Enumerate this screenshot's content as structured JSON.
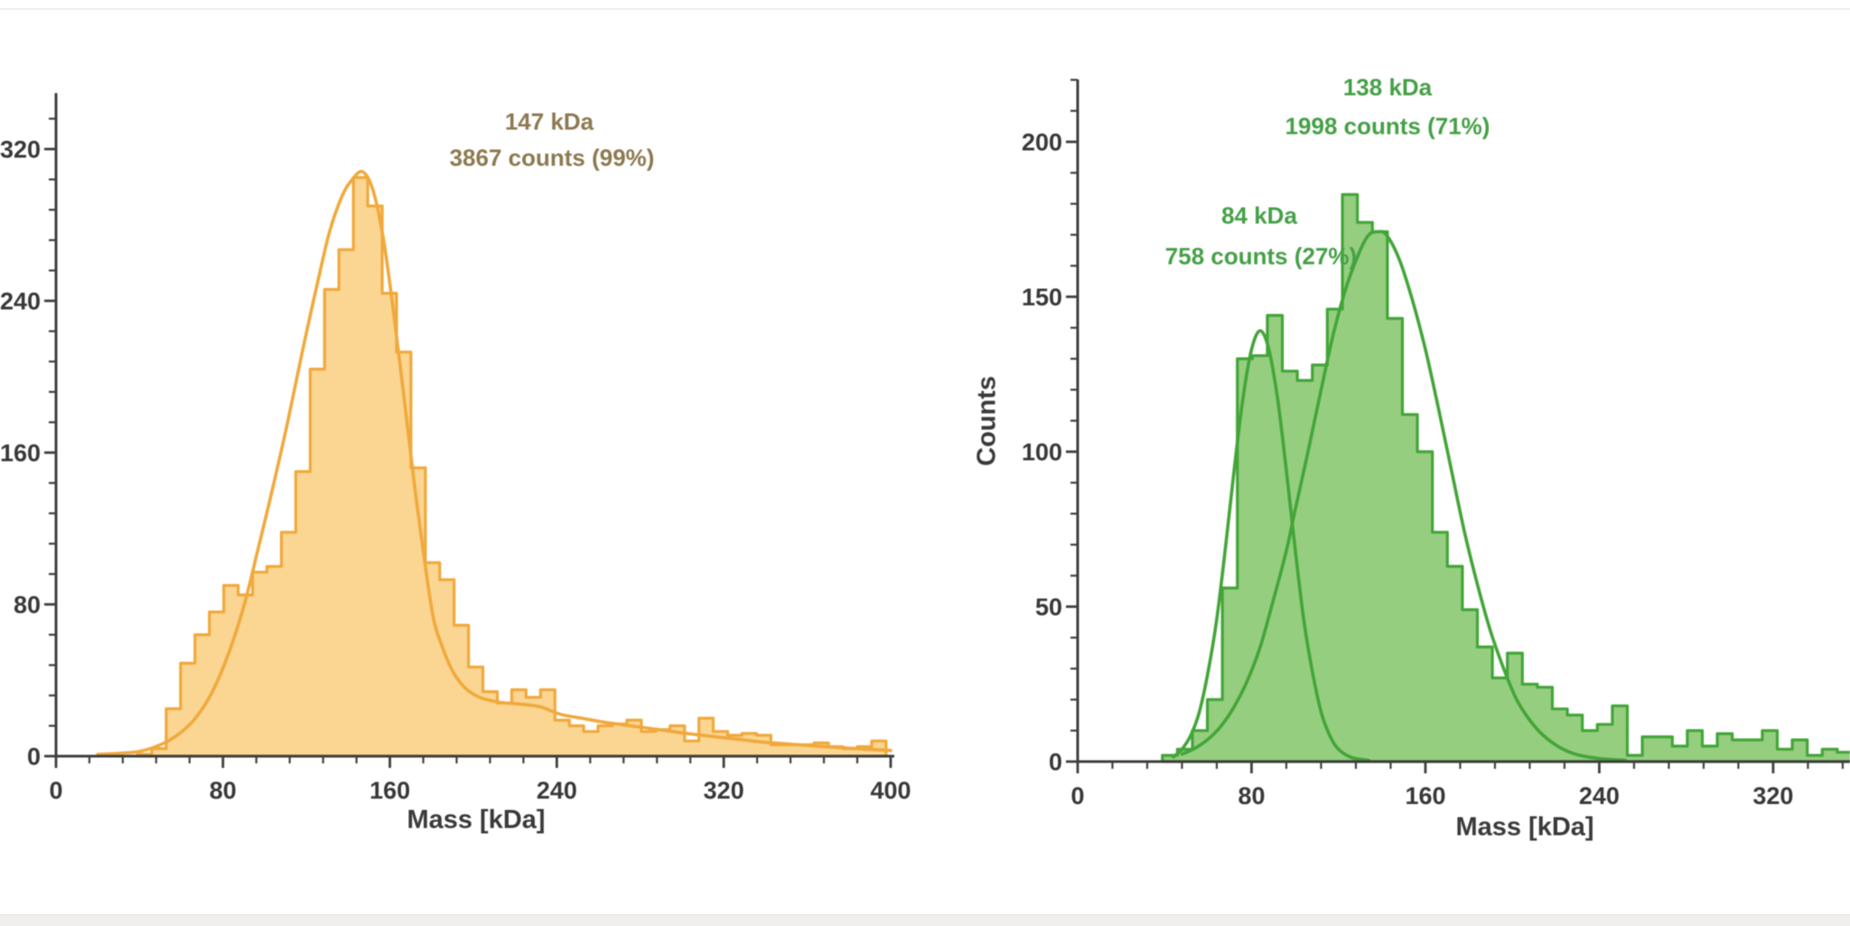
{
  "page": {
    "background": "#ffffff",
    "axis_color": "#3f3f3f",
    "tick_label_color": "#383838",
    "top_border_color": "#efefef",
    "bottom_bar_color": "#f0efee"
  },
  "charts": [
    {
      "id": "left",
      "series_name": "orange-mass-histogram",
      "colors": {
        "stroke": "#f0a93c",
        "fill": "#fbd592",
        "annotation": "#8d7950"
      },
      "annotations": [
        {
          "lines": [
            "147 kDa",
            "3867 counts (99%)"
          ]
        }
      ],
      "chart_data": {
        "type": "bar",
        "subtype": "histogram-with-gaussian-fit",
        "title": "",
        "xlabel": "Mass [kDa]",
        "ylabel": "",
        "xlim": [
          0,
          400
        ],
        "ylim": [
          0,
          350
        ],
        "x_major_ticks": [
          0,
          80,
          160,
          240,
          320,
          400
        ],
        "y_major_ticks": [
          0,
          80,
          160,
          240,
          320
        ],
        "x_minor_step": 16,
        "y_minor_step": 16,
        "grid": false,
        "legend": false,
        "peaks": [
          {
            "mass_kda": 147,
            "counts": 3867,
            "percent": 99
          }
        ],
        "bin_start": 39,
        "bin_width": 6.9,
        "bin_counts": [
          1,
          4,
          25,
          49,
          64,
          76,
          90,
          85,
          97,
          100,
          118,
          150,
          204,
          246,
          267,
          305,
          290,
          244,
          213,
          152,
          102,
          93,
          69,
          47,
          34,
          28,
          35,
          31,
          35,
          19,
          16,
          13,
          16,
          17,
          19,
          13,
          14,
          16,
          8,
          20,
          13,
          11,
          12,
          11,
          6,
          6,
          6,
          7,
          5,
          4,
          5,
          8
        ],
        "fit_curves": [
          {
            "name": "147 kDa fit",
            "points": [
              [
                20,
                1
              ],
              [
                30,
                1.5
              ],
              [
                40,
                2.5
              ],
              [
                50,
                6
              ],
              [
                58,
                11
              ],
              [
                66,
                19
              ],
              [
                74,
                32
              ],
              [
                82,
                52
              ],
              [
                90,
                79
              ],
              [
                97,
                110
              ],
              [
                104,
                142
              ],
              [
                111,
                176
              ],
              [
                118,
                213
              ],
              [
                125,
                248
              ],
              [
                131,
                276
              ],
              [
                137,
                295
              ],
              [
                142,
                304
              ],
              [
                147,
                308
              ],
              [
                152,
                298
              ],
              [
                157,
                272
              ],
              [
                162,
                232
              ],
              [
                167,
                187
              ],
              [
                172,
                141
              ],
              [
                177,
                100
              ],
              [
                181,
                72
              ],
              [
                185,
                58
              ],
              [
                190,
                45
              ],
              [
                196,
                36
              ],
              [
                203,
                31
              ],
              [
                212,
                28.5
              ],
              [
                222,
                27.5
              ],
              [
                232,
                26
              ],
              [
                242,
                22
              ],
              [
                252,
                20
              ],
              [
                262,
                18
              ],
              [
                272,
                16.5
              ],
              [
                282,
                15
              ],
              [
                292,
                13.5
              ],
              [
                302,
                12
              ],
              [
                314,
                10.5
              ],
              [
                326,
                9
              ],
              [
                338,
                7.5
              ],
              [
                350,
                6.5
              ],
              [
                365,
                5.3
              ],
              [
                380,
                4.2
              ],
              [
                400,
                3
              ]
            ]
          }
        ]
      }
    },
    {
      "id": "right",
      "series_name": "green-mass-histogram",
      "colors": {
        "stroke": "#43a538",
        "fill": "#96ce80",
        "annotation": "#45a047"
      },
      "annotations": [
        {
          "lines": [
            "84 kDa",
            "758 counts (27%)"
          ]
        },
        {
          "lines": [
            "138 kDa",
            "1998 counts (71%)"
          ]
        }
      ],
      "chart_data": {
        "type": "bar",
        "subtype": "histogram-with-gaussian-fit",
        "title": "",
        "xlabel": "Mass [kDa]",
        "ylabel": "Counts",
        "xlim": [
          0,
          355
        ],
        "ylim": [
          0,
          220
        ],
        "x_major_ticks": [
          0,
          80,
          160,
          240,
          320
        ],
        "y_major_ticks": [
          0,
          50,
          100,
          150,
          200
        ],
        "x_minor_step": 16,
        "y_minor_step": 10,
        "grid": false,
        "legend": false,
        "peaks": [
          {
            "mass_kda": 84,
            "counts": 758,
            "percent": 27
          },
          {
            "mass_kda": 138,
            "counts": 1998,
            "percent": 71
          }
        ],
        "bin_start": 39,
        "bin_width": 6.9,
        "bin_counts": [
          2,
          4,
          10,
          20,
          56,
          130,
          131,
          144,
          126,
          123,
          128,
          146,
          183,
          174,
          171,
          143,
          112,
          100,
          74,
          63,
          49,
          37,
          27,
          35,
          25,
          24,
          17,
          15,
          10,
          12,
          18,
          2,
          8,
          8,
          5,
          10,
          5,
          9,
          7,
          7,
          10,
          4,
          7,
          2,
          4,
          3
        ],
        "fit_curves": [
          {
            "name": "84 kDa fit",
            "points": [
              [
                44,
                1.5
              ],
              [
                48,
                4
              ],
              [
                52,
                8.4
              ],
              [
                56,
                16
              ],
              [
                60,
                29
              ],
              [
                64,
                46
              ],
              [
                68,
                69
              ],
              [
                72,
                94
              ],
              [
                76,
                117
              ],
              [
                80,
                133
              ],
              [
                84,
                139
              ],
              [
                88,
                133
              ],
              [
                92,
                117
              ],
              [
                96,
                94
              ],
              [
                100,
                69
              ],
              [
                104,
                46
              ],
              [
                108,
                29
              ],
              [
                112,
                16
              ],
              [
                116,
                8.4
              ],
              [
                120,
                4
              ],
              [
                126,
                1.3
              ],
              [
                134,
                0.4
              ]
            ]
          },
          {
            "name": "138 kDa fit",
            "points": [
              [
                48,
                2.4
              ],
              [
                54,
                4.3
              ],
              [
                60,
                7.2
              ],
              [
                66,
                11.5
              ],
              [
                72,
                17.7
              ],
              [
                78,
                26
              ],
              [
                84,
                37
              ],
              [
                90,
                52
              ],
              [
                96,
                68
              ],
              [
                100,
                81
              ],
              [
                106,
                100
              ],
              [
                112,
                120
              ],
              [
                118,
                139
              ],
              [
                124,
                154
              ],
              [
                130,
                165
              ],
              [
                134,
                170
              ],
              [
                138,
                171
              ],
              [
                142,
                170
              ],
              [
                148,
                162
              ],
              [
                154,
                149
              ],
              [
                160,
                133
              ],
              [
                166,
                114
              ],
              [
                172,
                94
              ],
              [
                178,
                74
              ],
              [
                184,
                57
              ],
              [
                190,
                42
              ],
              [
                196,
                30
              ],
              [
                202,
                20
              ],
              [
                208,
                13.4
              ],
              [
                214,
                8.6
              ],
              [
                222,
                4.5
              ],
              [
                230,
                2.2
              ],
              [
                240,
                1
              ],
              [
                252,
                0.4
              ]
            ]
          }
        ]
      }
    }
  ]
}
